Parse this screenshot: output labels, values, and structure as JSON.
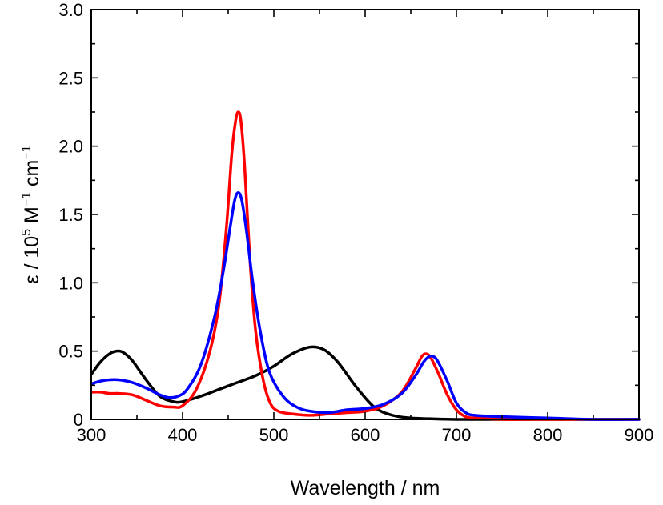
{
  "chart_data": {
    "type": "line",
    "title": "",
    "xlabel": "Wavelength / nm",
    "ylabel": {
      "p1": "ε / 10",
      "sup1": "5",
      "p2": " M",
      "sup2": "−1",
      "p3": " cm",
      "sup3": "−1"
    },
    "xlim": [
      300,
      900
    ],
    "ylim": [
      0,
      3.0
    ],
    "xticks": [
      300,
      400,
      500,
      600,
      700,
      800,
      900
    ],
    "yticks": [
      0,
      0.5,
      1.0,
      1.5,
      2.0,
      2.5,
      3.0
    ],
    "xtick_labels": [
      "300",
      "400",
      "500",
      "600",
      "700",
      "800",
      "900"
    ],
    "ytick_labels": [
      "0",
      "0.5",
      "1.0",
      "1.5",
      "2.0",
      "2.5",
      "3.0"
    ],
    "grid": false,
    "series": [
      {
        "color": "#000000",
        "x": [
          300,
          310,
          320,
          328,
          335,
          345,
          360,
          375,
          390,
          400,
          420,
          440,
          460,
          480,
          500,
          520,
          540,
          555,
          570,
          590,
          610,
          630,
          650,
          670,
          700,
          750,
          800,
          850,
          900
        ],
        "y": [
          0.33,
          0.42,
          0.48,
          0.5,
          0.49,
          0.43,
          0.29,
          0.17,
          0.13,
          0.13,
          0.17,
          0.22,
          0.27,
          0.32,
          0.39,
          0.48,
          0.53,
          0.51,
          0.42,
          0.24,
          0.09,
          0.03,
          0.01,
          0.005,
          0.0,
          0.0,
          0.0,
          0.0,
          0.0
        ]
      },
      {
        "color": "#ff0000",
        "x": [
          300,
          310,
          320,
          330,
          345,
          360,
          375,
          390,
          400,
          415,
          430,
          440,
          448,
          454,
          458,
          461,
          464,
          468,
          474,
          480,
          488,
          496,
          505,
          520,
          540,
          560,
          580,
          600,
          620,
          640,
          655,
          662,
          667,
          672,
          680,
          690,
          700,
          710,
          720,
          750,
          800,
          850,
          900
        ],
        "y": [
          0.2,
          0.2,
          0.19,
          0.19,
          0.18,
          0.14,
          0.1,
          0.09,
          0.1,
          0.22,
          0.5,
          0.85,
          1.4,
          1.95,
          2.18,
          2.25,
          2.18,
          1.85,
          1.15,
          0.65,
          0.3,
          0.12,
          0.06,
          0.04,
          0.03,
          0.04,
          0.05,
          0.06,
          0.1,
          0.2,
          0.37,
          0.46,
          0.48,
          0.45,
          0.34,
          0.18,
          0.07,
          0.02,
          0.01,
          0.0,
          0.0,
          0.0,
          0.0
        ]
      },
      {
        "color": "#0000ff",
        "x": [
          300,
          310,
          320,
          330,
          345,
          360,
          375,
          385,
          395,
          405,
          420,
          435,
          445,
          452,
          457,
          461,
          465,
          470,
          477,
          485,
          495,
          510,
          525,
          540,
          560,
          580,
          600,
          620,
          640,
          655,
          664,
          670,
          675,
          680,
          690,
          700,
          710,
          720,
          750,
          800,
          850,
          900
        ],
        "y": [
          0.26,
          0.28,
          0.29,
          0.29,
          0.27,
          0.23,
          0.18,
          0.16,
          0.17,
          0.22,
          0.4,
          0.75,
          1.1,
          1.4,
          1.6,
          1.66,
          1.6,
          1.38,
          1.0,
          0.65,
          0.35,
          0.17,
          0.09,
          0.06,
          0.05,
          0.07,
          0.08,
          0.11,
          0.19,
          0.32,
          0.42,
          0.46,
          0.46,
          0.42,
          0.28,
          0.12,
          0.05,
          0.03,
          0.02,
          0.01,
          0.0,
          0.0
        ]
      }
    ]
  }
}
